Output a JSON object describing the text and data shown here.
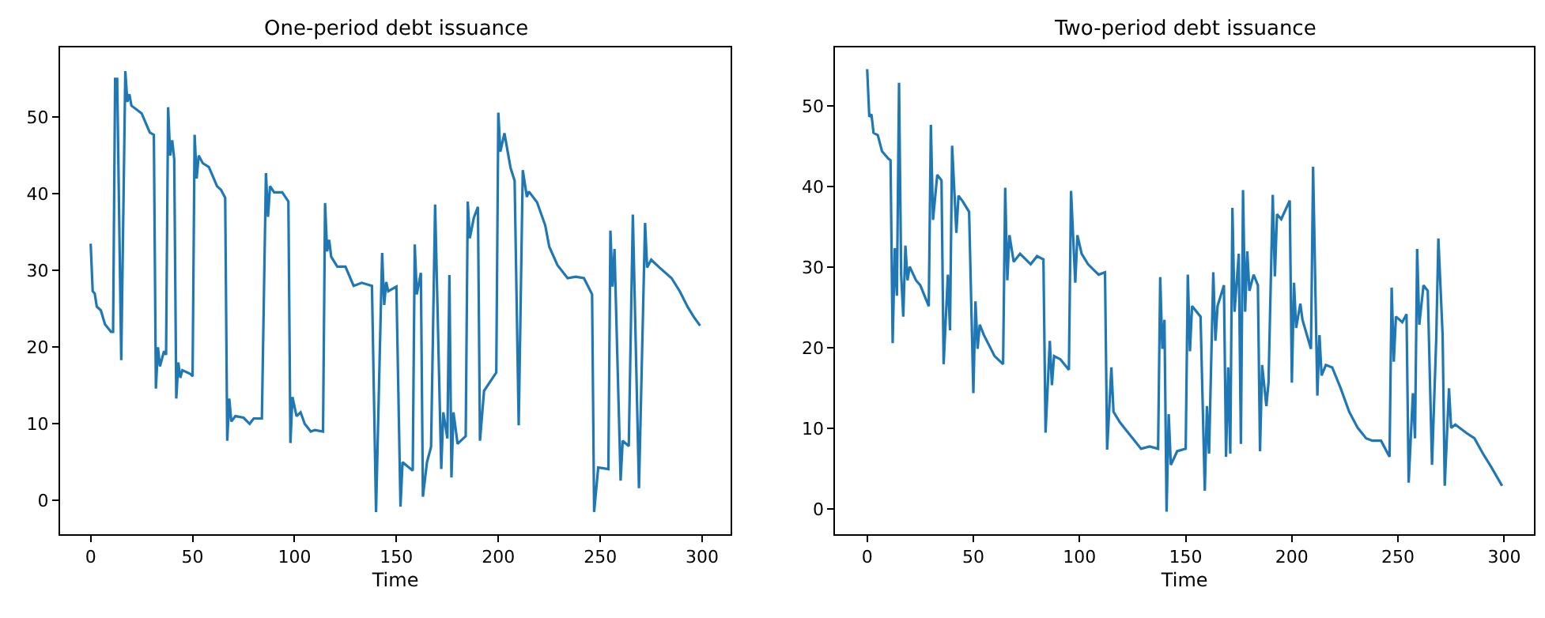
{
  "chart_data": [
    {
      "type": "line",
      "title": "One-period debt issuance",
      "xlabel": "Time",
      "color": "#1f77b4",
      "x": [
        0,
        1,
        2,
        3,
        5,
        7,
        10,
        11,
        12,
        13,
        15,
        17,
        18,
        19,
        20,
        25,
        29,
        31,
        32,
        33,
        34,
        36,
        37,
        38,
        39,
        40,
        41,
        42,
        43,
        44,
        45,
        49,
        50,
        51,
        52,
        53,
        55,
        58,
        62,
        64,
        66,
        67,
        68,
        69,
        71,
        75,
        78,
        80,
        84,
        86,
        87,
        88,
        90,
        94,
        97,
        98,
        99,
        101,
        103,
        105,
        108,
        110,
        114,
        115,
        116,
        117,
        118,
        121,
        125,
        129,
        133,
        138,
        140,
        143,
        144,
        145,
        146,
        150,
        152,
        153,
        158,
        159,
        160,
        162,
        163,
        165,
        167,
        169,
        172,
        173,
        175,
        176,
        177,
        178,
        180,
        184,
        185,
        186,
        188,
        190,
        191,
        193,
        199,
        200,
        201,
        203,
        206,
        208,
        210,
        212,
        214,
        215,
        219,
        223,
        225,
        229,
        234,
        238,
        242,
        246,
        247,
        249,
        254,
        255,
        256,
        257,
        260,
        261,
        264,
        266,
        269,
        272,
        273,
        275,
        279,
        285,
        289,
        293,
        296,
        299
      ],
      "values": [
        33.5,
        27.3,
        27,
        25.3,
        24.8,
        23,
        22,
        22,
        55,
        55,
        18.3,
        56,
        52,
        53,
        51.5,
        50.5,
        48,
        47.7,
        14.6,
        20,
        17.5,
        19.5,
        19,
        51.3,
        45,
        47,
        44.5,
        13.3,
        18,
        16,
        17,
        16.5,
        16.2,
        47.7,
        42,
        45,
        44,
        43.5,
        41,
        40.5,
        39.5,
        7.8,
        13.3,
        10.3,
        11,
        10.8,
        10,
        10.7,
        10.7,
        42.7,
        37,
        41,
        40.2,
        40.2,
        39,
        7.5,
        13.5,
        11,
        11.5,
        10,
        9,
        9.2,
        9,
        38.8,
        32.5,
        34,
        31.8,
        30.5,
        30.5,
        28,
        28.4,
        28,
        -1.5,
        32.3,
        25.5,
        28.5,
        27.3,
        27.9,
        -0.8,
        5,
        3.9,
        33.4,
        26.9,
        29.7,
        0.5,
        5,
        7,
        38.6,
        4.1,
        11.5,
        8.1,
        29.4,
        3,
        11.5,
        7.4,
        8.4,
        39,
        34.2,
        36.9,
        38.3,
        7.8,
        14.3,
        16.7,
        50.6,
        45.5,
        47.9,
        43.4,
        41.7,
        9.8,
        43.1,
        39.6,
        40.3,
        38.9,
        35.9,
        33.1,
        30.7,
        29,
        29.2,
        29,
        26.9,
        -1.5,
        4.3,
        4.1,
        35.2,
        27.9,
        32.8,
        2.6,
        7.8,
        7.1,
        37.3,
        1.6,
        36.2,
        30.4,
        31.4,
        30.4,
        29,
        27.3,
        25.2,
        23.9,
        22.8
      ],
      "xlim": [
        -15,
        314
      ],
      "ylim": [
        -4.4,
        59.1
      ],
      "xticks": [
        0,
        50,
        100,
        150,
        200,
        250,
        300
      ],
      "yticks": [
        0,
        10,
        20,
        30,
        40,
        50
      ]
    },
    {
      "type": "line",
      "title": "Two-period debt issuance",
      "xlabel": "Time",
      "color": "#1f77b4",
      "x": [
        0,
        1,
        2,
        3,
        5,
        7,
        10,
        11,
        12,
        13,
        14,
        15,
        16,
        17,
        18,
        19,
        20,
        23,
        25,
        29,
        30,
        31,
        33,
        35,
        36,
        38,
        39,
        40,
        42,
        43,
        45,
        48,
        50,
        51,
        52,
        53,
        55,
        60,
        64,
        65,
        66,
        67,
        69,
        72,
        77,
        80,
        83,
        84,
        86,
        87,
        88,
        91,
        95,
        96,
        98,
        99,
        101,
        104,
        109,
        112,
        113,
        115,
        116,
        119,
        122,
        129,
        133,
        137,
        138,
        139,
        140,
        141,
        142,
        143,
        146,
        150,
        151,
        152,
        153,
        157,
        159,
        160,
        161,
        163,
        164,
        165,
        168,
        169,
        170,
        171,
        172,
        173,
        175,
        176,
        177,
        178,
        179,
        180,
        182,
        184,
        185,
        186,
        188,
        189,
        191,
        192,
        193,
        195,
        199,
        200,
        201,
        202,
        204,
        205,
        209,
        210,
        212,
        213,
        214,
        216,
        219,
        223,
        227,
        231,
        235,
        238,
        242,
        246,
        247,
        248,
        249,
        252,
        254,
        255,
        257,
        258,
        259,
        260,
        262,
        264,
        266,
        268,
        269,
        271,
        272,
        274,
        275,
        277,
        282,
        286,
        290,
        294,
        299
      ],
      "values": [
        54.6,
        48.7,
        49,
        46.7,
        46.4,
        44.4,
        43.5,
        43.3,
        20.6,
        32.4,
        26.5,
        52.9,
        29.1,
        23.9,
        32.7,
        28.4,
        30.1,
        28.4,
        27.8,
        25.2,
        47.7,
        35.9,
        41.5,
        40.8,
        18,
        29.1,
        22.2,
        45.1,
        34.3,
        38.9,
        38.2,
        36.9,
        14.4,
        25.8,
        19.9,
        22.9,
        21.6,
        19,
        18,
        39.9,
        28.4,
        34,
        30.7,
        31.7,
        30.4,
        31.4,
        31,
        9.5,
        20.9,
        15.4,
        19,
        18.6,
        17.3,
        39.5,
        28.1,
        34,
        31.7,
        30.4,
        29.1,
        29.4,
        7.4,
        17.6,
        12.1,
        10.8,
        9.8,
        7.5,
        7.8,
        7.5,
        28.8,
        19.9,
        23.5,
        -0.3,
        11.8,
        5.5,
        7.2,
        7.5,
        29.1,
        19.6,
        25.2,
        23.9,
        2.3,
        12.8,
        6.9,
        29.4,
        20.9,
        25.2,
        27.8,
        6.5,
        17.6,
        6.9,
        37.4,
        24.5,
        31.7,
        8.1,
        39.6,
        24.5,
        32,
        27.1,
        29.1,
        27.8,
        7.2,
        17.9,
        12.8,
        15.7,
        39,
        28.9,
        36.6,
        36,
        38.3,
        15.7,
        28.1,
        22.5,
        25.5,
        23.5,
        19.9,
        42.5,
        14.1,
        21.6,
        16.6,
        17.9,
        17.6,
        15,
        12.1,
        10.1,
        8.8,
        8.5,
        8.5,
        6.5,
        27.5,
        18.3,
        23.9,
        23.2,
        24.2,
        3.3,
        14.4,
        8.8,
        32.3,
        22.9,
        27.8,
        27.1,
        5.5,
        21.2,
        33.6,
        21.6,
        2.9,
        15,
        10.1,
        10.5,
        9.5,
        8.8,
        6.9,
        5.2,
        2.9
      ],
      "xlim": [
        -15,
        314
      ],
      "ylim": [
        -3.1,
        57.3
      ],
      "xticks": [
        0,
        50,
        100,
        150,
        200,
        250,
        300
      ],
      "yticks": [
        0,
        10,
        20,
        30,
        40,
        50
      ]
    }
  ]
}
